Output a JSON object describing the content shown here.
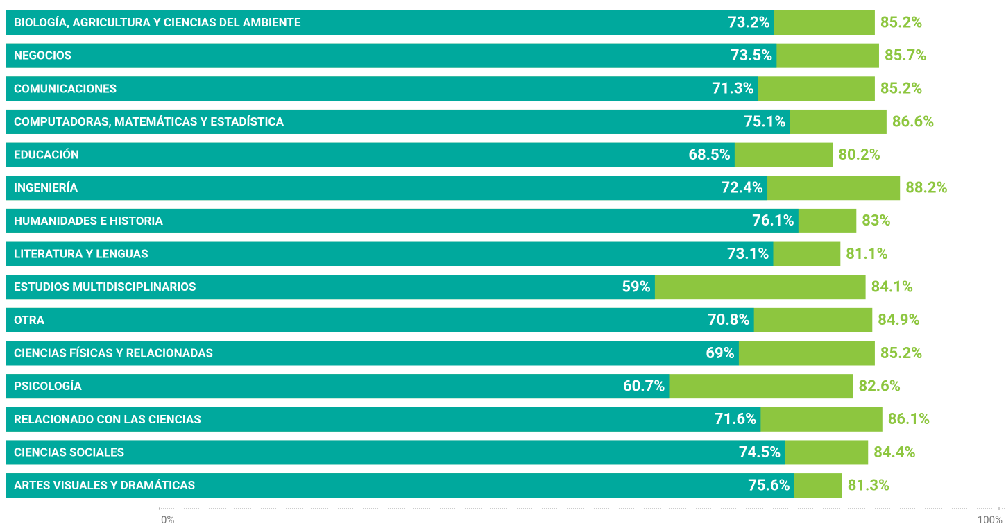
{
  "chart_data": {
    "type": "overlap-bar",
    "categories": [
      "BIOLOGÍA, AGRICULTURA Y CIENCIAS DEL AMBIENTE",
      "NEGOCIOS",
      "COMUNICACIONES",
      "COMPUTADORAS, MATEMÁTICAS Y ESTADÍSTICA",
      "EDUCACIÓN",
      "INGENIERÍA",
      "HUMANIDADES E HISTORIA",
      "LITERATURA Y LENGUAS",
      "ESTUDIOS MULTIDISCIPLINARIOS",
      "OTRA",
      "CIENCIAS FÍSICAS Y RELACIONADAS",
      "PSICOLOGÍA",
      "RELACIONADO CON LAS CIENCIAS",
      "CIENCIAS SOCIALES",
      "ARTES VISUALES Y DRAMÁTICAS"
    ],
    "series": [
      {
        "color": "#8dc63f",
        "values": [
          85.2,
          85.7,
          85.2,
          86.6,
          80.2,
          88.2,
          83,
          81.1,
          84.1,
          84.9,
          85.2,
          82.6,
          86.1,
          84.4,
          81.3
        ],
        "value_labels": [
          "85.2%",
          "85.7%",
          "85.2%",
          "86.6%",
          "80.2%",
          "88.2%",
          "83%",
          "81.1%",
          "84.1%",
          "84.9%",
          "85.2%",
          "82.6%",
          "86.1%",
          "84.4%",
          "81.3%"
        ]
      },
      {
        "color": "#00a99d",
        "values": [
          73.2,
          73.5,
          71.3,
          75.1,
          68.5,
          72.4,
          76.1,
          73.1,
          59,
          70.8,
          69,
          60.7,
          71.6,
          74.5,
          75.6
        ],
        "value_labels": [
          "73.2%",
          "73.5%",
          "71.3%",
          "75.1%",
          "68.5%",
          "72.4%",
          "76.1%",
          "73.1%",
          "59%",
          "70.8%",
          "69%",
          "60.7%",
          "71.6%",
          "74.5%",
          "75.6%"
        ]
      }
    ],
    "xlim": [
      0,
      100
    ],
    "xticks": [
      {
        "value": 0,
        "label": "0%"
      },
      {
        "value": 100,
        "label": "100%"
      }
    ]
  }
}
